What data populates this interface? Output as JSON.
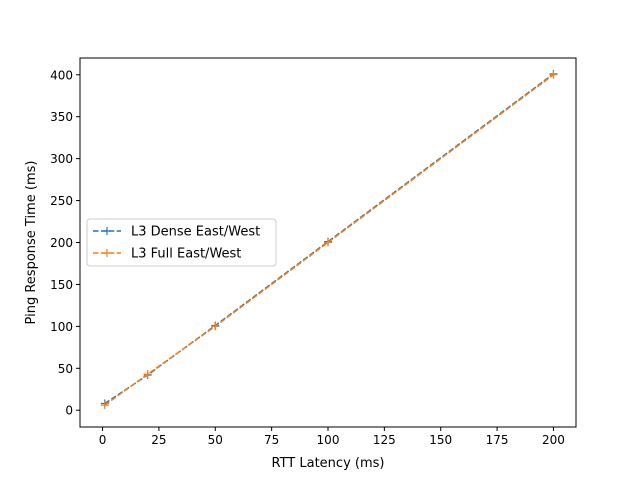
{
  "chart_data": {
    "type": "line",
    "title": "",
    "xlabel": "RTT Latency (ms)",
    "ylabel": "Ping Response Time (ms)",
    "xlim": [
      -10,
      210
    ],
    "ylim": [
      -20,
      420
    ],
    "xticks": [
      0,
      25,
      50,
      75,
      100,
      125,
      150,
      175,
      200
    ],
    "yticks": [
      0,
      50,
      100,
      150,
      200,
      250,
      300,
      350,
      400
    ],
    "grid": false,
    "legend_position": "center-left",
    "series": [
      {
        "name": "L3 Dense East/West",
        "color": "#1f77b4",
        "linestyle": "dashed",
        "marker": "plus",
        "x": [
          1,
          20,
          50,
          100,
          200
        ],
        "y": [
          8,
          42,
          101,
          201,
          401
        ]
      },
      {
        "name": "L3 Full East/West",
        "color": "#ff7f0e",
        "linestyle": "dashed",
        "marker": "plus",
        "x": [
          1,
          20,
          50,
          100,
          200
        ],
        "y": [
          6,
          43,
          100,
          200,
          400
        ]
      }
    ]
  }
}
